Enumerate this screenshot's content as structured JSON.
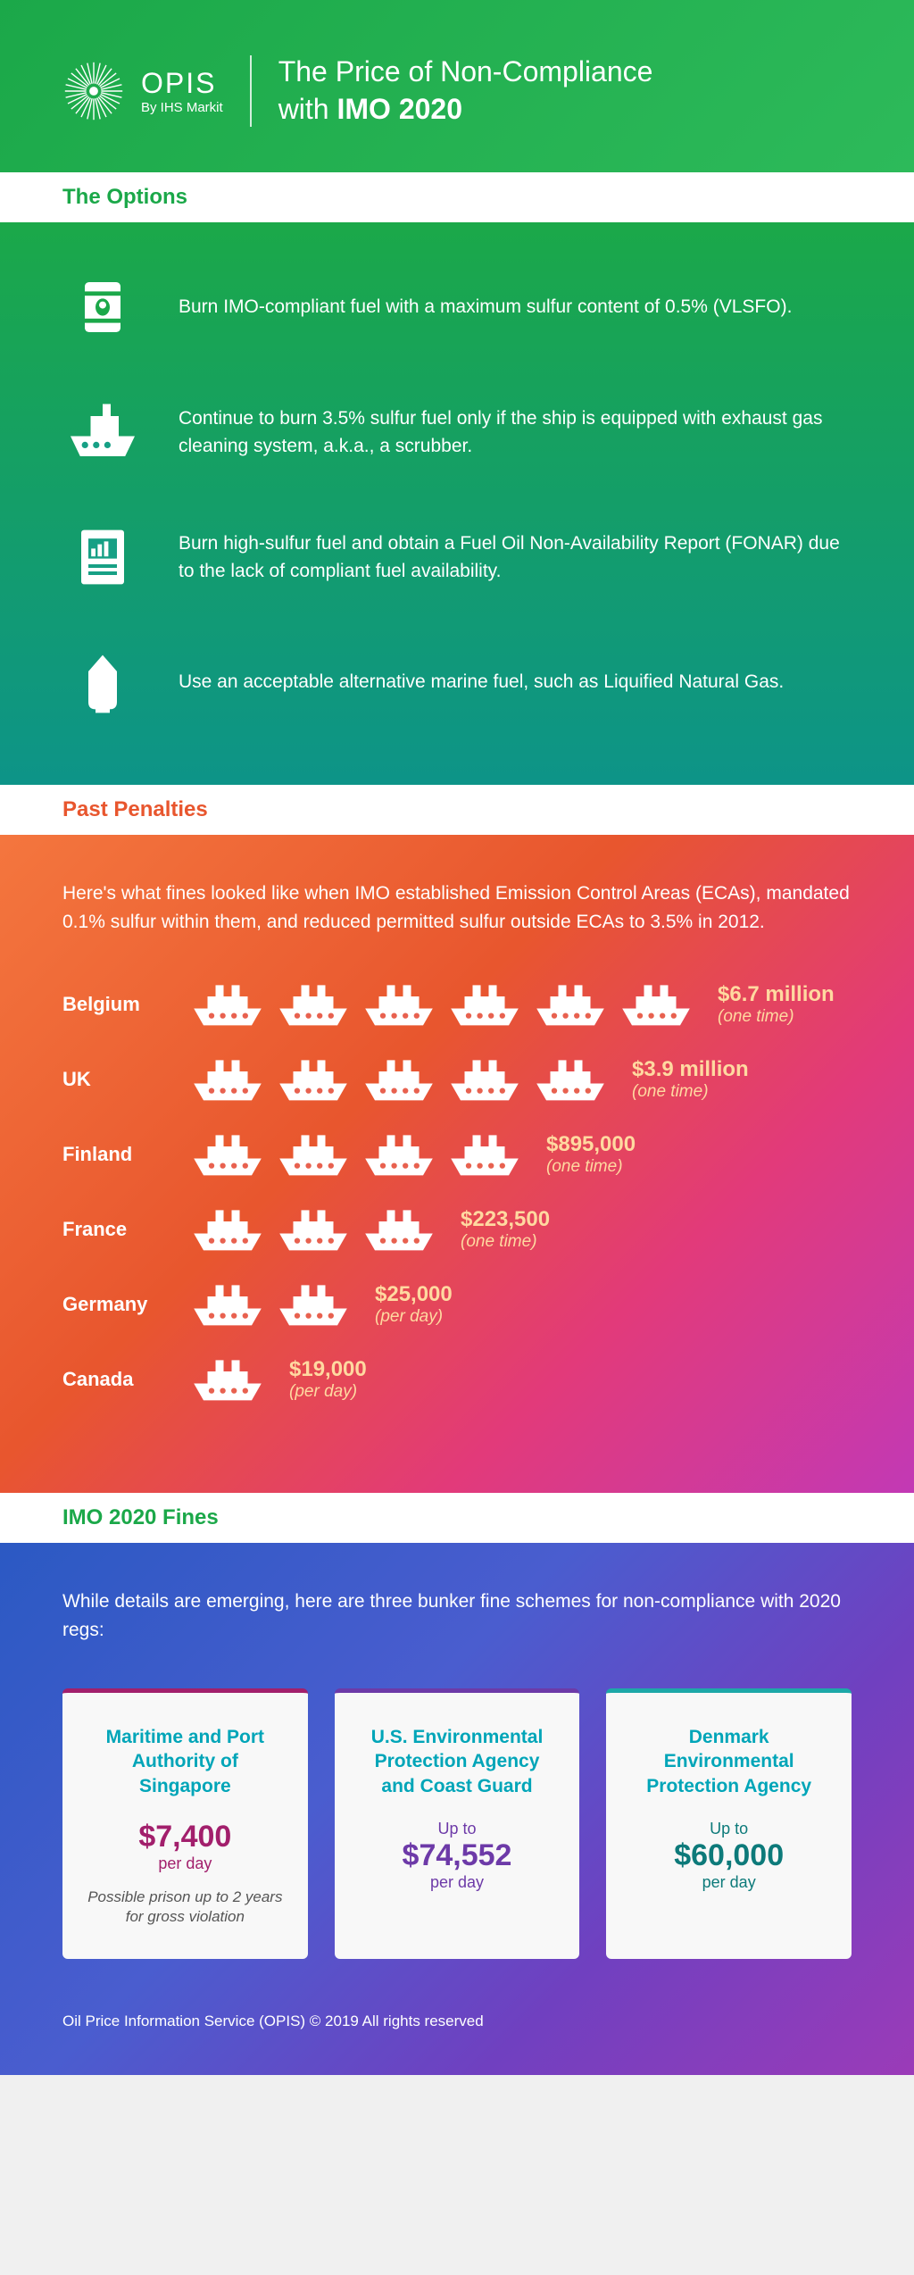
{
  "brand": {
    "name": "OPIS",
    "tagline": "By IHS Markit"
  },
  "title": {
    "line1": "The Price of Non-Compliance",
    "line2_pre": "with ",
    "line2_strong": "IMO 2020"
  },
  "sections": {
    "options": "The Options",
    "penalties": "Past Penalties",
    "fines": "IMO 2020 Fines"
  },
  "options": [
    {
      "icon": "barrel",
      "text": "Burn IMO-compliant fuel with a maximum sulfur content of 0.5% (VLSFO)."
    },
    {
      "icon": "ship",
      "text": "Continue to burn 3.5% sulfur fuel only if the ship is equipped with exhaust gas cleaning system, a.k.a., a scrubber."
    },
    {
      "icon": "report",
      "text": "Burn high-sulfur fuel and obtain a Fuel Oil Non-Availability Report (FONAR) due to the lack of compliant fuel availability."
    },
    {
      "icon": "lng",
      "text": "Use an acceptable alternative marine fuel, such as Liquified Natural Gas."
    }
  ],
  "penalties_intro": "Here's what fines looked like when IMO established Emission Control Areas (ECAs), mandated 0.1% sulfur within them, and reduced permitted sulfur outside ECAs to 3.5% in 2012.",
  "penalties": [
    {
      "country": "Belgium",
      "ships": 6,
      "amount": "$6.7 million",
      "freq": "(one time)"
    },
    {
      "country": "UK",
      "ships": 5,
      "amount": "$3.9 million",
      "freq": "(one time)"
    },
    {
      "country": "Finland",
      "ships": 4,
      "amount": "$895,000",
      "freq": "(one time)"
    },
    {
      "country": "France",
      "ships": 3,
      "amount": "$223,500",
      "freq": "(one time)"
    },
    {
      "country": "Germany",
      "ships": 2,
      "amount": "$25,000",
      "freq": "(per day)"
    },
    {
      "country": "Canada",
      "ships": 1,
      "amount": "$19,000",
      "freq": "(per day)"
    }
  ],
  "fines_intro": "While details are emerging, here are three bunker fine schemes for non-compliance with 2020 regs:",
  "cards": [
    {
      "title": "Maritime and Port Authority of Singapore",
      "upto": "",
      "amount": "$7,400",
      "per": "per day",
      "note": "Possible prison up to 2 years for gross violation"
    },
    {
      "title": "U.S. Environmental Protection Agency and Coast Guard",
      "upto": "Up to",
      "amount": "$74,552",
      "per": "per day",
      "note": ""
    },
    {
      "title": "Denmark Environmental Protection Agency",
      "upto": "Up to",
      "amount": "$60,000",
      "per": "per day",
      "note": ""
    }
  ],
  "footer": "Oil Price Information Service (OPIS) © 2019 All rights reserved",
  "colors": {
    "green_start": "#1ba849",
    "green_end": "#0d9488",
    "orange_start": "#f4763e",
    "orange_mid": "#e8562e",
    "pink": "#e23a7a",
    "magenta": "#c239b5",
    "blue_start": "#2b59c3",
    "purple": "#7040c0",
    "penalty_amt": "#ffd9a0",
    "card_title": "#00a5b8",
    "c1_accent": "#a21f6c",
    "c2_accent": "#6d3aa8",
    "c3_accent": "#0d7a7a"
  },
  "typography": {
    "body_fontsize": 21,
    "title_fontsize": 32,
    "section_fontsize": 24,
    "amount_fontsize": 24,
    "card_amt_fontsize": 34
  },
  "ship_icon_width": 90
}
